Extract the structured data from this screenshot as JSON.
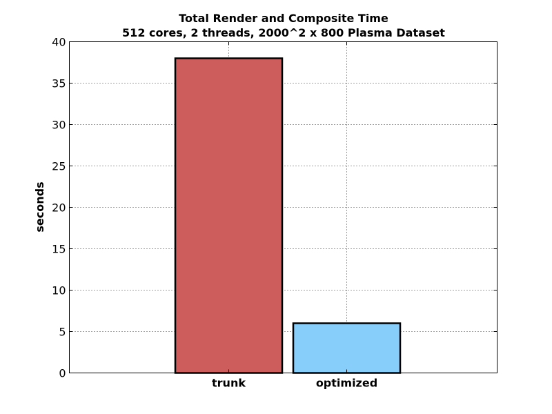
{
  "chart_data": {
    "type": "bar",
    "title_line1": "Total Render and Composite Time",
    "title_line2": "512 cores, 2 threads, 2000^2 x 800 Plasma Dataset",
    "xlabel": "",
    "ylabel": "seconds",
    "categories": [
      "trunk",
      "optimized"
    ],
    "values": [
      38,
      6
    ],
    "colors": [
      "#cd5c5c",
      "#87cefa"
    ],
    "edge_color": "#000000",
    "ylim": [
      0,
      40
    ],
    "yticks": [
      0,
      5,
      10,
      15,
      20,
      25,
      30,
      35,
      40
    ],
    "grid": true
  }
}
